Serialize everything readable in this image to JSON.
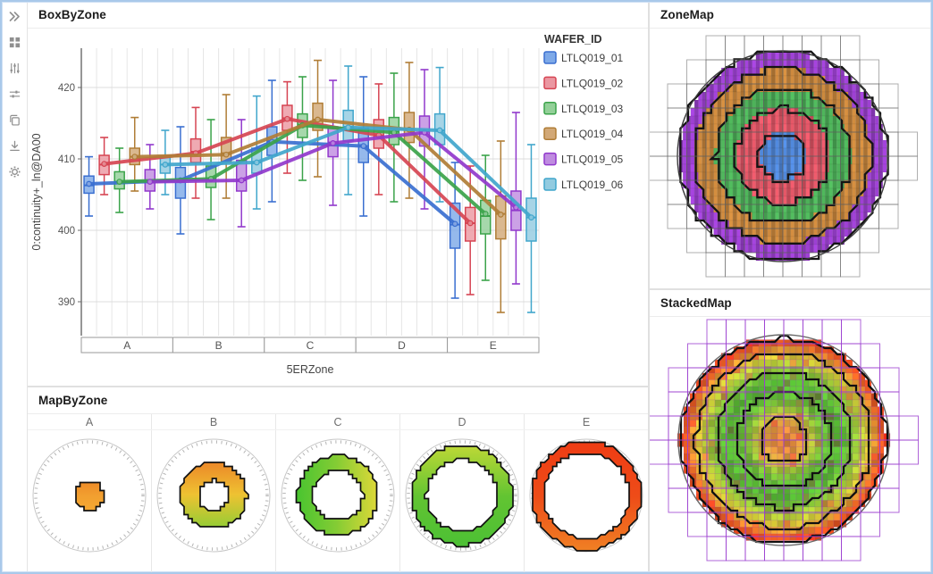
{
  "window": {
    "frame_color": "#a9c9ea"
  },
  "sidebar": {
    "icons": [
      {
        "name": "expand-panel",
        "glyph": "chevrons-right"
      },
      {
        "name": "visualization-types",
        "glyph": "grid"
      },
      {
        "name": "filters",
        "glyph": "sliders-vertical"
      },
      {
        "name": "adjust-settings",
        "glyph": "sliders-horizontal"
      },
      {
        "name": "duplicate",
        "glyph": "copy"
      },
      {
        "name": "export",
        "glyph": "download"
      },
      {
        "name": "settings",
        "glyph": "gear"
      }
    ]
  },
  "panels": {
    "box_by_zone": {
      "title": "BoxByZone"
    },
    "zone_map": {
      "title": "ZoneMap"
    },
    "stacked_map": {
      "title": "StackedMap"
    },
    "map_by_zone": {
      "title": "MapByZone"
    }
  },
  "chart_data": [
    {
      "id": "boxplot",
      "type": "boxplot-grouped",
      "title": "BoxByZone",
      "xlabel": "5ERZone",
      "ylabel": "0:continuity+_ln@DA00",
      "legend_title": "WAFER_ID",
      "categories": [
        "A",
        "B",
        "C",
        "D",
        "E"
      ],
      "yticks": [
        420,
        410,
        400,
        390
      ],
      "ylim_top_value": 425.5,
      "grid": true,
      "legend_position": "right",
      "series": [
        {
          "name": "LTLQ019_01",
          "color": "#3a6fd0",
          "fill": "#7ea9e8",
          "stats": [
            [
              402.0,
              405.2,
              406.3,
              407.6,
              410.3,
              406.5
            ],
            [
              399.5,
              404.5,
              406.8,
              408.8,
              414.5,
              407.0
            ],
            [
              404.0,
              410.5,
              412.5,
              414.5,
              421.0,
              412.4
            ],
            [
              402.0,
              409.5,
              411.8,
              414.3,
              421.5,
              411.8
            ],
            [
              390.5,
              397.5,
              400.8,
              403.8,
              409.5,
              400.9
            ]
          ]
        },
        {
          "name": "LTLQ019_02",
          "color": "#d64553",
          "fill": "#eb97a1",
          "stats": [
            [
              405.0,
              407.8,
              409.2,
              410.5,
              413.0,
              409.3
            ],
            [
              404.5,
              409.5,
              411.0,
              412.8,
              417.2,
              410.8
            ],
            [
              408.0,
              414.0,
              415.7,
              417.5,
              420.8,
              415.6
            ],
            [
              405.0,
              411.5,
              413.3,
              415.5,
              420.5,
              413.3
            ],
            [
              391.0,
              398.5,
              401.0,
              403.2,
              409.0,
              401.0
            ]
          ]
        },
        {
          "name": "LTLQ019_03",
          "color": "#3ba34a",
          "fill": "#93d098",
          "stats": [
            [
              402.5,
              405.8,
              406.8,
              408.2,
              411.5,
              406.8
            ],
            [
              401.5,
              406.0,
              407.2,
              409.0,
              415.5,
              407.2
            ],
            [
              407.0,
              413.0,
              414.8,
              416.3,
              421.5,
              414.7
            ],
            [
              404.0,
              412.0,
              413.8,
              415.8,
              422.0,
              413.7
            ],
            [
              393.0,
              399.5,
              402.0,
              404.2,
              410.5,
              402.3
            ]
          ]
        },
        {
          "name": "LTLQ019_04",
          "color": "#b07d36",
          "fill": "#d2a876",
          "stats": [
            [
              405.5,
              409.2,
              410.3,
              411.5,
              415.8,
              410.3
            ],
            [
              404.5,
              409.5,
              410.8,
              413.0,
              419.0,
              410.6
            ],
            [
              407.5,
              414.0,
              415.5,
              417.8,
              423.8,
              415.5
            ],
            [
              404.5,
              412.3,
              414.2,
              416.5,
              423.5,
              414.1
            ],
            [
              388.5,
              398.8,
              402.3,
              404.8,
              412.5,
              402.2
            ]
          ]
        },
        {
          "name": "LTLQ019_05",
          "color": "#9138cc",
          "fill": "#bf8ce0",
          "stats": [
            [
              403.0,
              405.5,
              407.0,
              408.5,
              412.0,
              406.8
            ],
            [
              400.5,
              405.5,
              407.0,
              409.8,
              415.5,
              407.0
            ],
            [
              403.5,
              410.3,
              412.3,
              414.5,
              421.0,
              412.2
            ],
            [
              403.0,
              411.8,
              413.8,
              416.0,
              422.5,
              413.7
            ],
            [
              392.5,
              400.0,
              402.8,
              405.5,
              416.5,
              403.2
            ]
          ]
        },
        {
          "name": "LTLQ019_06",
          "color": "#41a6cc",
          "fill": "#92cbe0",
          "stats": [
            [
              405.0,
              408.0,
              409.2,
              410.2,
              414.0,
              409.2
            ],
            [
              403.0,
              408.0,
              409.5,
              411.5,
              418.8,
              409.5
            ],
            [
              405.0,
              412.5,
              414.5,
              416.8,
              423.0,
              414.4
            ],
            [
              404.0,
              412.0,
              414.0,
              416.3,
              422.8,
              414.0
            ],
            [
              388.5,
              398.5,
              401.8,
              404.5,
              412.0,
              401.8
            ]
          ]
        }
      ]
    },
    {
      "id": "zonemap",
      "type": "wafer-zone-map",
      "title": "ZoneMap",
      "zones": [
        {
          "label": "A",
          "color": "#4f86d8",
          "r_outer": 26
        },
        {
          "label": "B",
          "color": "#e05565",
          "r_outer": 53
        },
        {
          "label": "C",
          "color": "#4cb058",
          "r_outer": 76
        },
        {
          "label": "D",
          "color": "#c8863c",
          "r_outer": 98
        },
        {
          "label": "E",
          "color": "#9b3fd0",
          "r_outer": 117
        }
      ],
      "wafer_radius": 118,
      "reticle_color": "#9a9a9a"
    },
    {
      "id": "stackedmap",
      "type": "wafer-heat-map",
      "title": "StackedMap",
      "wafer_radius": 118,
      "ring_boundaries": [
        26,
        53,
        76,
        98,
        114
      ],
      "reticle_color": "#9b3fd0",
      "gradient_stops": [
        [
          0.0,
          "#dd7f38"
        ],
        [
          0.1,
          "#e28d3c"
        ],
        [
          0.16,
          "#dc9b3c"
        ],
        [
          0.24,
          "#c8b83a"
        ],
        [
          0.3,
          "#9cc636"
        ],
        [
          0.4,
          "#62bc34"
        ],
        [
          0.55,
          "#55bb33"
        ],
        [
          0.65,
          "#7ec436"
        ],
        [
          0.74,
          "#b8cc36"
        ],
        [
          0.81,
          "#d8c234"
        ],
        [
          0.87,
          "#e69430"
        ],
        [
          0.92,
          "#e65c22"
        ],
        [
          1.0,
          "#e23a16"
        ]
      ]
    },
    {
      "id": "mapbyzone",
      "type": "wafer-ring-maps",
      "title": "MapByZone",
      "wafer_radius": 63,
      "zones": [
        {
          "label": "A",
          "r_inner": 0,
          "r_outer": 16,
          "dir": "vertical",
          "colors": [
            "#ee8c28",
            "#f2a030",
            "#f5a832"
          ]
        },
        {
          "label": "B",
          "r_inner": 17,
          "r_outer": 37,
          "dir": "vertical",
          "colors": [
            "#ec8828",
            "#eec232",
            "#96cc34"
          ]
        },
        {
          "label": "C",
          "r_inner": 28,
          "r_outer": 45,
          "dir": "horizontal",
          "colors": [
            "#48c430",
            "#84cc34",
            "#ddd838"
          ]
        },
        {
          "label": "D",
          "r_inner": 40,
          "r_outer": 56,
          "dir": "vertical",
          "colors": [
            "#bcd836",
            "#62c432",
            "#4cc034"
          ]
        },
        {
          "label": "E",
          "r_inner": 48,
          "r_outer": 61,
          "dir": "vertical",
          "colors": [
            "#ee3c14",
            "#ee4c18",
            "#f08024"
          ]
        }
      ]
    }
  ]
}
